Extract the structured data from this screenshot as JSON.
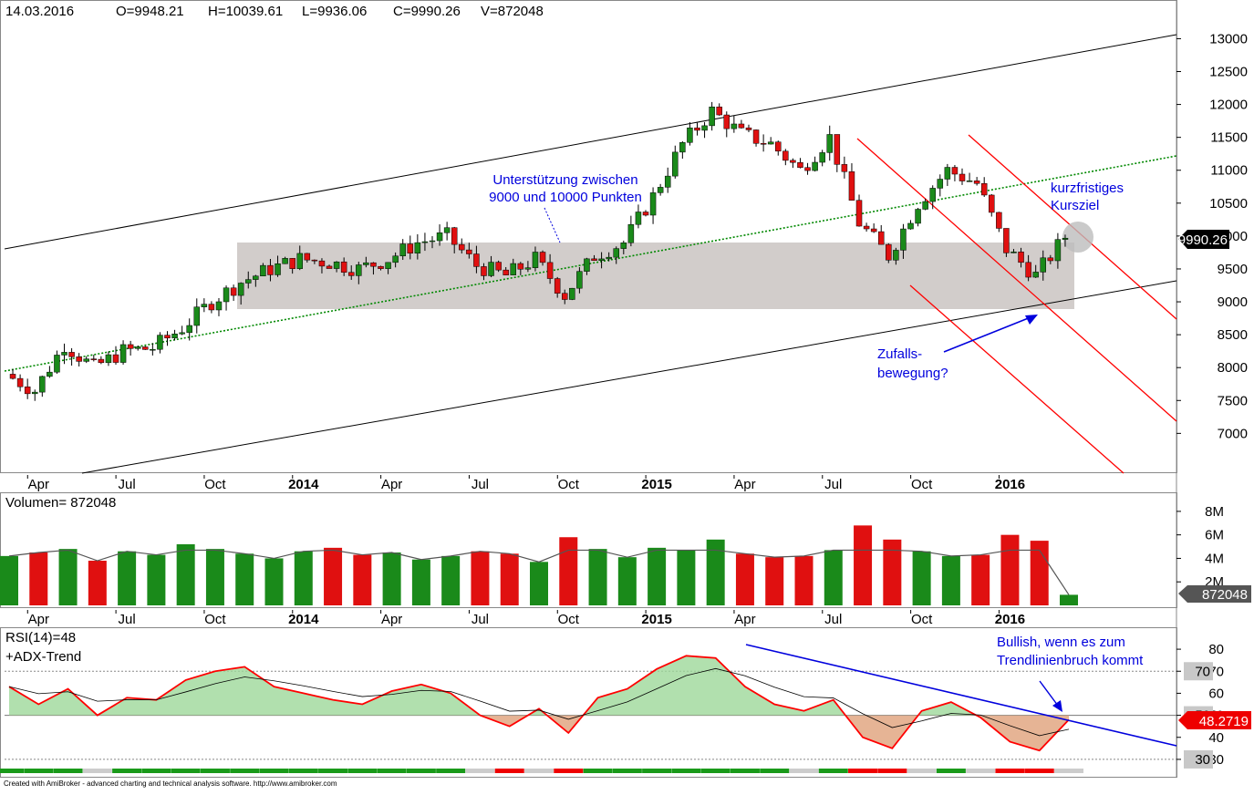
{
  "header": {
    "date": "14.03.2016",
    "open": "O=9948.21",
    "high": "H=10039.61",
    "low": "L=9936.06",
    "close": "C=9990.26",
    "volume": "V=872048"
  },
  "annotations": {
    "support": [
      "Unterstützung zwischen",
      "9000 und 10000 Punkten"
    ],
    "target": [
      "kurzfristiges",
      "Kursziel"
    ],
    "random": [
      "Zufalls-",
      "bewegung?"
    ],
    "bullish": [
      "Bullish, wenn es zum",
      "Trendlinienbruch kommt"
    ]
  },
  "x_labels": [
    "Apr",
    "Jul",
    "Oct",
    "2014",
    "Apr",
    "Jul",
    "Oct",
    "2015",
    "Apr",
    "Jul",
    "Oct",
    "2016"
  ],
  "bold_x_labels": [
    "2014",
    "2015",
    "2016"
  ],
  "price_panel": {
    "y_ticks": [
      "13000",
      "12500",
      "12000",
      "11500",
      "11000",
      "10500",
      "10000",
      "9500",
      "9000",
      "8500",
      "8000",
      "7500",
      "7000"
    ],
    "last_price_label": "9990.26"
  },
  "volume_panel": {
    "title": "Volumen= 872048",
    "y_ticks": [
      "8M",
      "6M",
      "4M",
      "2M"
    ],
    "last_volume_label": "872048"
  },
  "rsi_panel": {
    "title": "RSI(14)=48",
    "subtitle": "+ADX-Trend",
    "y_ticks": [
      "80",
      "70",
      "60",
      "50",
      "40",
      "30"
    ],
    "boxed_labels": [
      "70",
      "50",
      "30"
    ],
    "last_rsi_label": "48.2719"
  },
  "footer": "Created with AmiBroker - advanced charting and technical analysis software. http://www.amibroker.com",
  "colors": {
    "up": "#1a8a1a",
    "down": "#e01010",
    "channel_red": "#ff0000",
    "green_dotted": "#008800",
    "annotation_blue": "#0000dd",
    "support_box": "#cdc8c5",
    "rsi_line": "#ff0000"
  },
  "chart_data": {
    "type": "candlestick",
    "scale": "linear",
    "x": [
      "2013-03",
      "2013-04",
      "2013-05",
      "2013-06",
      "2013-07",
      "2013-08",
      "2013-09",
      "2013-10",
      "2013-11",
      "2013-12",
      "2014-01",
      "2014-02",
      "2014-03",
      "2014-04",
      "2014-05",
      "2014-06",
      "2014-07",
      "2014-08",
      "2014-09",
      "2014-10",
      "2014-11",
      "2014-12",
      "2015-01",
      "2015-02",
      "2015-03",
      "2015-04",
      "2015-05",
      "2015-06",
      "2015-07",
      "2015-08",
      "2015-09",
      "2015-10",
      "2015-11",
      "2015-12",
      "2016-01",
      "2016-02",
      "2016-03"
    ],
    "close": [
      7900,
      7650,
      8350,
      8000,
      8250,
      8300,
      8600,
      9000,
      9300,
      9500,
      9650,
      9600,
      9500,
      9650,
      9900,
      10000,
      9550,
      9400,
      9650,
      9100,
      9700,
      9900,
      10600,
      11400,
      11900,
      11550,
      11400,
      11000,
      11500,
      10200,
      9700,
      10500,
      11000,
      10800,
      9800,
      9400,
      9990
    ],
    "ylim": [
      6700,
      13200
    ],
    "volume_unit": "M",
    "volume": [
      4.2,
      4.5,
      4.8,
      3.8,
      4.6,
      4.3,
      5.2,
      4.8,
      4.4,
      4.0,
      4.6,
      4.9,
      4.3,
      4.5,
      3.9,
      4.2,
      4.6,
      4.4,
      3.7,
      5.8,
      4.8,
      4.1,
      4.9,
      4.7,
      5.6,
      4.4,
      4.1,
      4.2,
      4.7,
      6.8,
      5.6,
      4.6,
      4.2,
      4.3,
      6.0,
      5.5,
      0.9
    ],
    "volume_ylim": [
      0,
      9
    ],
    "rsi": [
      63,
      55,
      62,
      50,
      58,
      57,
      66,
      70,
      72,
      63,
      60,
      57,
      55,
      61,
      64,
      60,
      50,
      45,
      53,
      42,
      58,
      62,
      71,
      77,
      76,
      63,
      55,
      52,
      57,
      40,
      35,
      52,
      56,
      49,
      38,
      34,
      48
    ],
    "rsi_ylim": [
      25,
      85
    ],
    "rsi_levels": [
      70,
      50,
      30
    ],
    "support_zone": [
      9000,
      10000
    ],
    "last_price": 9990.26,
    "last_volume": 872048,
    "last_rsi": 48.2719
  }
}
